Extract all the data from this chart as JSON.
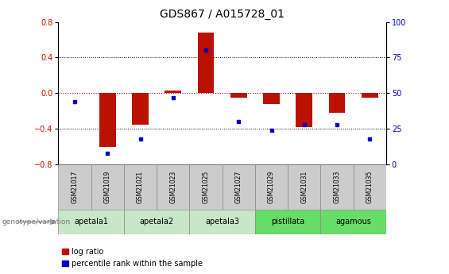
{
  "title": "GDS867 / A015728_01",
  "samples": [
    "GSM21017",
    "GSM21019",
    "GSM21021",
    "GSM21023",
    "GSM21025",
    "GSM21027",
    "GSM21029",
    "GSM21031",
    "GSM21033",
    "GSM21035"
  ],
  "log_ratio": [
    0.0,
    -0.6,
    -0.35,
    0.03,
    0.68,
    -0.05,
    -0.12,
    -0.38,
    -0.22,
    -0.05
  ],
  "percentile_rank": [
    44,
    8,
    18,
    47,
    80,
    30,
    24,
    28,
    28,
    18
  ],
  "groups": [
    {
      "label": "apetala1",
      "samples": [
        0,
        1
      ],
      "color": "#c8e6c8"
    },
    {
      "label": "apetala2",
      "samples": [
        2,
        3
      ],
      "color": "#c8e6c8"
    },
    {
      "label": "apetala3",
      "samples": [
        4,
        5
      ],
      "color": "#c8e6c8"
    },
    {
      "label": "pistillata",
      "samples": [
        6,
        7
      ],
      "color": "#66dd66"
    },
    {
      "label": "agamous",
      "samples": [
        8,
        9
      ],
      "color": "#66dd66"
    }
  ],
  "ylim": [
    -0.8,
    0.8
  ],
  "yticks_left": [
    -0.8,
    -0.4,
    0.0,
    0.4,
    0.8
  ],
  "yticks_right": [
    0,
    25,
    50,
    75,
    100
  ],
  "bar_color": "#bb1100",
  "dot_color": "#0000cc",
  "hline_color": "#cc0000",
  "title_fontsize": 10,
  "tick_fontsize": 7,
  "sample_box_color": "#cccccc",
  "legend_fontsize": 7
}
